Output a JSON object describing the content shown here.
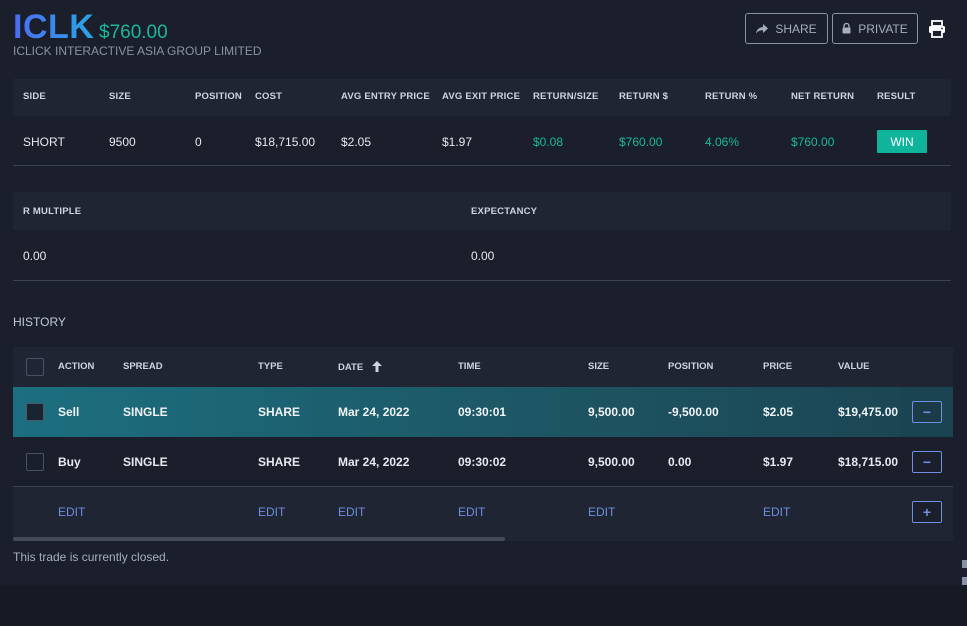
{
  "header": {
    "ticker": "ICLK",
    "price": "$760.00",
    "company": "ICLICK INTERACTIVE ASIA GROUP LIMITED",
    "share_label": "SHARE",
    "private_label": "PRIVATE"
  },
  "stats": {
    "headers": [
      "SIDE",
      "SIZE",
      "POSITION",
      "COST",
      "AVG ENTRY PRICE",
      "AVG EXIT PRICE",
      "RETURN/SIZE",
      "RETURN $",
      "RETURN %",
      "NET RETURN",
      "RESULT"
    ],
    "values": [
      "SHORT",
      "9500",
      "0",
      "$18,715.00",
      "$2.05",
      "$1.97",
      "$0.08",
      "$760.00",
      "4.06%",
      "$760.00",
      "WIN"
    ]
  },
  "risk": {
    "headers": [
      "R MULTIPLE",
      "EXPECTANCY"
    ],
    "values": [
      "0.00",
      "0.00"
    ]
  },
  "history": {
    "label": "HISTORY",
    "columns": [
      "ACTION",
      "SPREAD",
      "TYPE",
      "DATE",
      "TIME",
      "SIZE",
      "POSITION",
      "PRICE",
      "VALUE"
    ],
    "rows": [
      [
        "Sell",
        "SINGLE",
        "SHARE",
        "Mar 24, 2022",
        "09:30:01",
        "9,500.00",
        "-9,500.00",
        "$2.05",
        "$19,475.00"
      ],
      [
        "Buy",
        "SINGLE",
        "SHARE",
        "Mar 24, 2022",
        "09:30:02",
        "9,500.00",
        "0.00",
        "$1.97",
        "$18,715.00"
      ]
    ],
    "edit_label": "EDIT",
    "remove_symbol": "−",
    "add_symbol": "+"
  },
  "status_note": "This trade is currently closed.",
  "colors": {
    "accent_green": "#16b89a",
    "link_blue": "#6f8fe0",
    "selected_row": "#1c6f80"
  }
}
